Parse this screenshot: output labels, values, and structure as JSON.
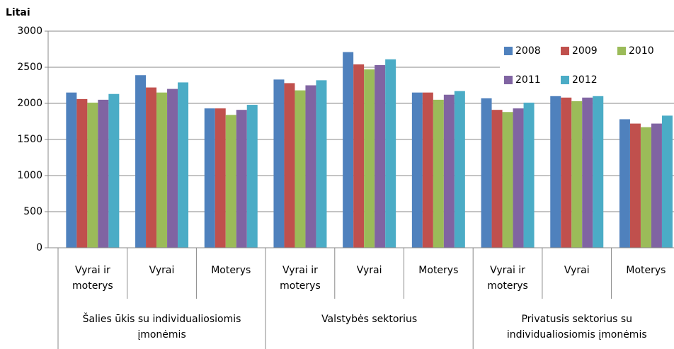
{
  "chart_data": {
    "type": "bar",
    "title": "Litai",
    "groups": [
      {
        "name": "Šalies ūkis su individualiosiomis įmonėmis",
        "categories": [
          "Vyrai ir moterys",
          "Vyrai",
          "Moterys"
        ]
      },
      {
        "name": "Valstybės sektorius",
        "categories": [
          "Vyrai ir moterys",
          "Vyrai",
          "Moterys"
        ]
      },
      {
        "name": "Privatusis sektorius su individualiosiomis įmonėmis",
        "categories": [
          "Vyrai ir moterys",
          "Vyrai",
          "Moterys"
        ]
      }
    ],
    "series": [
      {
        "name": "2008",
        "color": "#4f81bd",
        "values": [
          2150,
          2390,
          1930,
          2330,
          2710,
          2150,
          2070,
          2100,
          1780
        ]
      },
      {
        "name": "2009",
        "color": "#c0504d",
        "values": [
          2060,
          2220,
          1930,
          2280,
          2540,
          2150,
          1910,
          2080,
          1720
        ]
      },
      {
        "name": "2010",
        "color": "#9bbb59",
        "values": [
          2010,
          2150,
          1840,
          2180,
          2470,
          2050,
          1880,
          2030,
          1670
        ]
      },
      {
        "name": "2011",
        "color": "#8064a2",
        "values": [
          2050,
          2200,
          1910,
          2250,
          2530,
          2120,
          1930,
          2080,
          1720
        ]
      },
      {
        "name": "2012",
        "color": "#4bacc6",
        "values": [
          2130,
          2290,
          1980,
          2320,
          2610,
          2170,
          2010,
          2100,
          1830
        ]
      }
    ],
    "ylim": [
      0,
      3000
    ],
    "yticks": [
      0,
      500,
      1000,
      1500,
      2000,
      2500,
      3000
    ],
    "grid": true,
    "legend": "top-right"
  }
}
